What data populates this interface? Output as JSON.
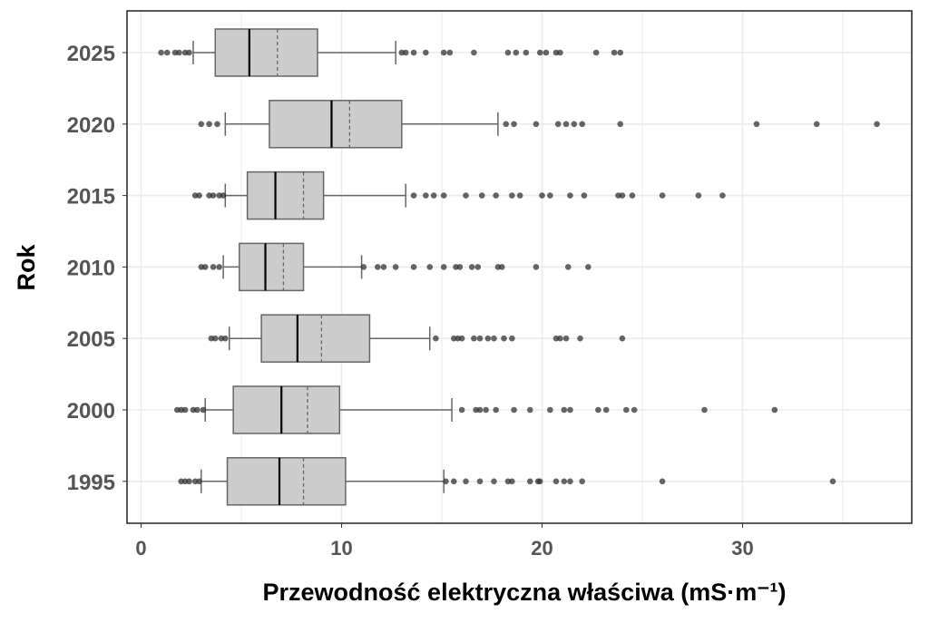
{
  "chart_data": {
    "type": "boxplot",
    "orientation": "horizontal",
    "xlabel": "Przewodność elektryczna właściwa (mS·m⁻¹)",
    "ylabel": "Rok",
    "xlim": [
      -0.7,
      38.5
    ],
    "xticks": [
      0,
      10,
      20,
      30
    ],
    "grid": true,
    "colors": {
      "box_fill": "#cccccc",
      "box_stroke": "#666666",
      "median": "#000000",
      "mean": "#666666",
      "outlier": "#333333",
      "grid": "#ebebeb",
      "tick_text": "#555555"
    },
    "categories": [
      "2025",
      "2020",
      "2015",
      "2010",
      "2005",
      "2000",
      "1995"
    ],
    "series": [
      {
        "category": "2025",
        "whisker_low": 2.6,
        "q1": 3.7,
        "median": 5.4,
        "mean": 6.8,
        "q3": 8.8,
        "whisker_high": 12.7,
        "outliers": [
          1.0,
          1.3,
          1.7,
          1.9,
          2.2,
          2.4,
          13.0,
          13.2,
          13.6,
          14.2,
          15.1,
          15.4,
          16.6,
          18.3,
          18.7,
          19.2,
          19.9,
          20.2,
          20.7,
          20.9,
          22.7,
          23.6,
          23.9
        ]
      },
      {
        "category": "2020",
        "whisker_low": 4.2,
        "q1": 6.4,
        "median": 9.5,
        "mean": 10.4,
        "q3": 13.0,
        "whisker_high": 17.8,
        "outliers": [
          3.0,
          3.4,
          3.8,
          18.2,
          18.6,
          19.7,
          20.8,
          21.2,
          21.6,
          22.0,
          23.9,
          30.7,
          33.7,
          36.7
        ]
      },
      {
        "category": "2015",
        "whisker_low": 4.2,
        "q1": 5.3,
        "median": 6.7,
        "mean": 8.1,
        "q3": 9.1,
        "whisker_high": 13.2,
        "outliers": [
          2.7,
          2.9,
          3.4,
          3.6,
          3.9,
          4.1,
          13.6,
          14.2,
          14.6,
          15.1,
          16.2,
          17.0,
          17.7,
          18.5,
          18.9,
          20.0,
          20.4,
          21.4,
          22.1,
          23.8,
          24.0,
          24.5,
          26.0,
          27.8,
          29.0
        ]
      },
      {
        "category": "2010",
        "whisker_low": 4.1,
        "q1": 4.9,
        "median": 6.2,
        "mean": 7.1,
        "q3": 8.1,
        "whisker_high": 11.0,
        "outliers": [
          3.0,
          3.2,
          3.6,
          3.9,
          11.1,
          11.8,
          12.1,
          12.7,
          13.6,
          14.4,
          15.1,
          15.7,
          15.9,
          16.5,
          16.8,
          17.8,
          18.0,
          19.7,
          21.3,
          22.3
        ]
      },
      {
        "category": "2005",
        "whisker_low": 4.4,
        "q1": 6.0,
        "median": 7.8,
        "mean": 9.0,
        "q3": 11.4,
        "whisker_high": 14.4,
        "outliers": [
          3.5,
          3.7,
          4.0,
          4.2,
          14.7,
          15.6,
          15.8,
          16.0,
          16.6,
          16.9,
          17.3,
          17.6,
          18.1,
          18.5,
          20.7,
          20.9,
          21.2,
          21.9,
          24.0
        ]
      },
      {
        "category": "2000",
        "whisker_low": 3.2,
        "q1": 4.6,
        "median": 7.0,
        "mean": 8.3,
        "q3": 9.9,
        "whisker_high": 15.5,
        "outliers": [
          1.8,
          2.0,
          2.2,
          2.6,
          2.8,
          3.1,
          16.0,
          16.7,
          16.9,
          17.2,
          17.7,
          18.6,
          19.4,
          20.4,
          21.1,
          21.4,
          22.8,
          23.2,
          24.2,
          24.6,
          28.1,
          31.6
        ]
      },
      {
        "category": "1995",
        "whisker_low": 3.0,
        "q1": 4.3,
        "median": 6.9,
        "mean": 8.1,
        "q3": 10.2,
        "whisker_high": 15.1,
        "outliers": [
          2.0,
          2.2,
          2.4,
          2.7,
          2.9,
          15.2,
          15.6,
          16.2,
          16.9,
          17.6,
          18.3,
          18.5,
          19.4,
          19.8,
          19.9,
          20.7,
          21.1,
          21.4,
          22.0,
          26.0,
          34.5
        ]
      }
    ]
  }
}
